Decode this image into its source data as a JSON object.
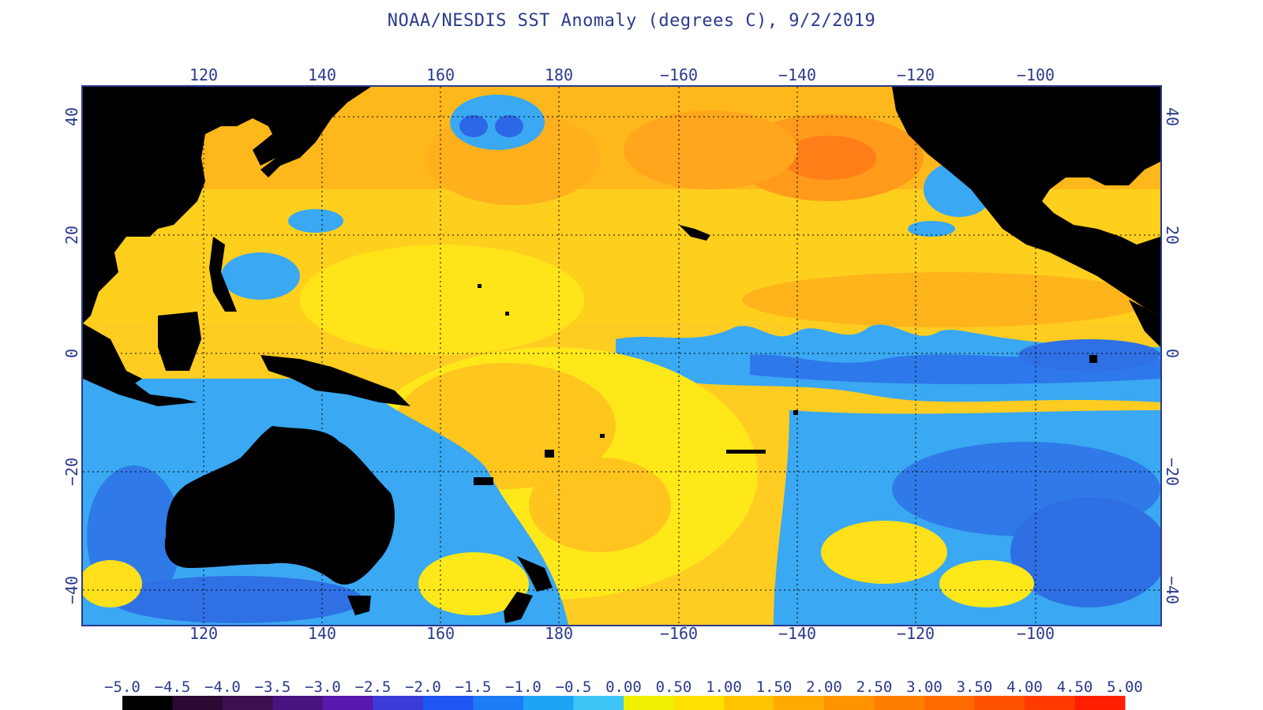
{
  "title": "NOAA/NESDIS SST Anomaly (degrees C), 9/2/2019",
  "map": {
    "lon_labels": [
      "120",
      "140",
      "160",
      "180",
      "−160",
      "−140",
      "−120",
      "−100"
    ],
    "lat_labels": [
      "40",
      "20",
      "0",
      "−20",
      "−40"
    ],
    "grid_style": "dotted",
    "frame_color": "#2b3a8c"
  },
  "colorbar": {
    "labels": [
      "−5.0",
      "−4.5",
      "−4.0",
      "−3.5",
      "−3.0",
      "−2.5",
      "−2.0",
      "−1.5",
      "−1.0",
      "−0.5",
      "0.00",
      "0.50",
      "1.00",
      "1.50",
      "2.00",
      "2.50",
      "3.00",
      "3.50",
      "4.00",
      "4.50",
      "5.00"
    ],
    "colors": [
      "#000000",
      "#2a0a33",
      "#3c1050",
      "#4a1380",
      "#5a18b0",
      "#3a3cd8",
      "#1f55f0",
      "#1b7cf5",
      "#1fa3f5",
      "#3fc6f8",
      "#f0f000",
      "#ffe000",
      "#ffc400",
      "#ffaa00",
      "#ff9400",
      "#ff7e00",
      "#ff6a00",
      "#ff5200",
      "#ff3a00",
      "#ff1e00"
    ]
  },
  "colors": {
    "land": "#000000",
    "warm": "#ffc31c",
    "neutral": "#ffe81a",
    "cool": "#38a6f2",
    "cold": "#2b67e6",
    "hot": "#ff8a1a"
  }
}
